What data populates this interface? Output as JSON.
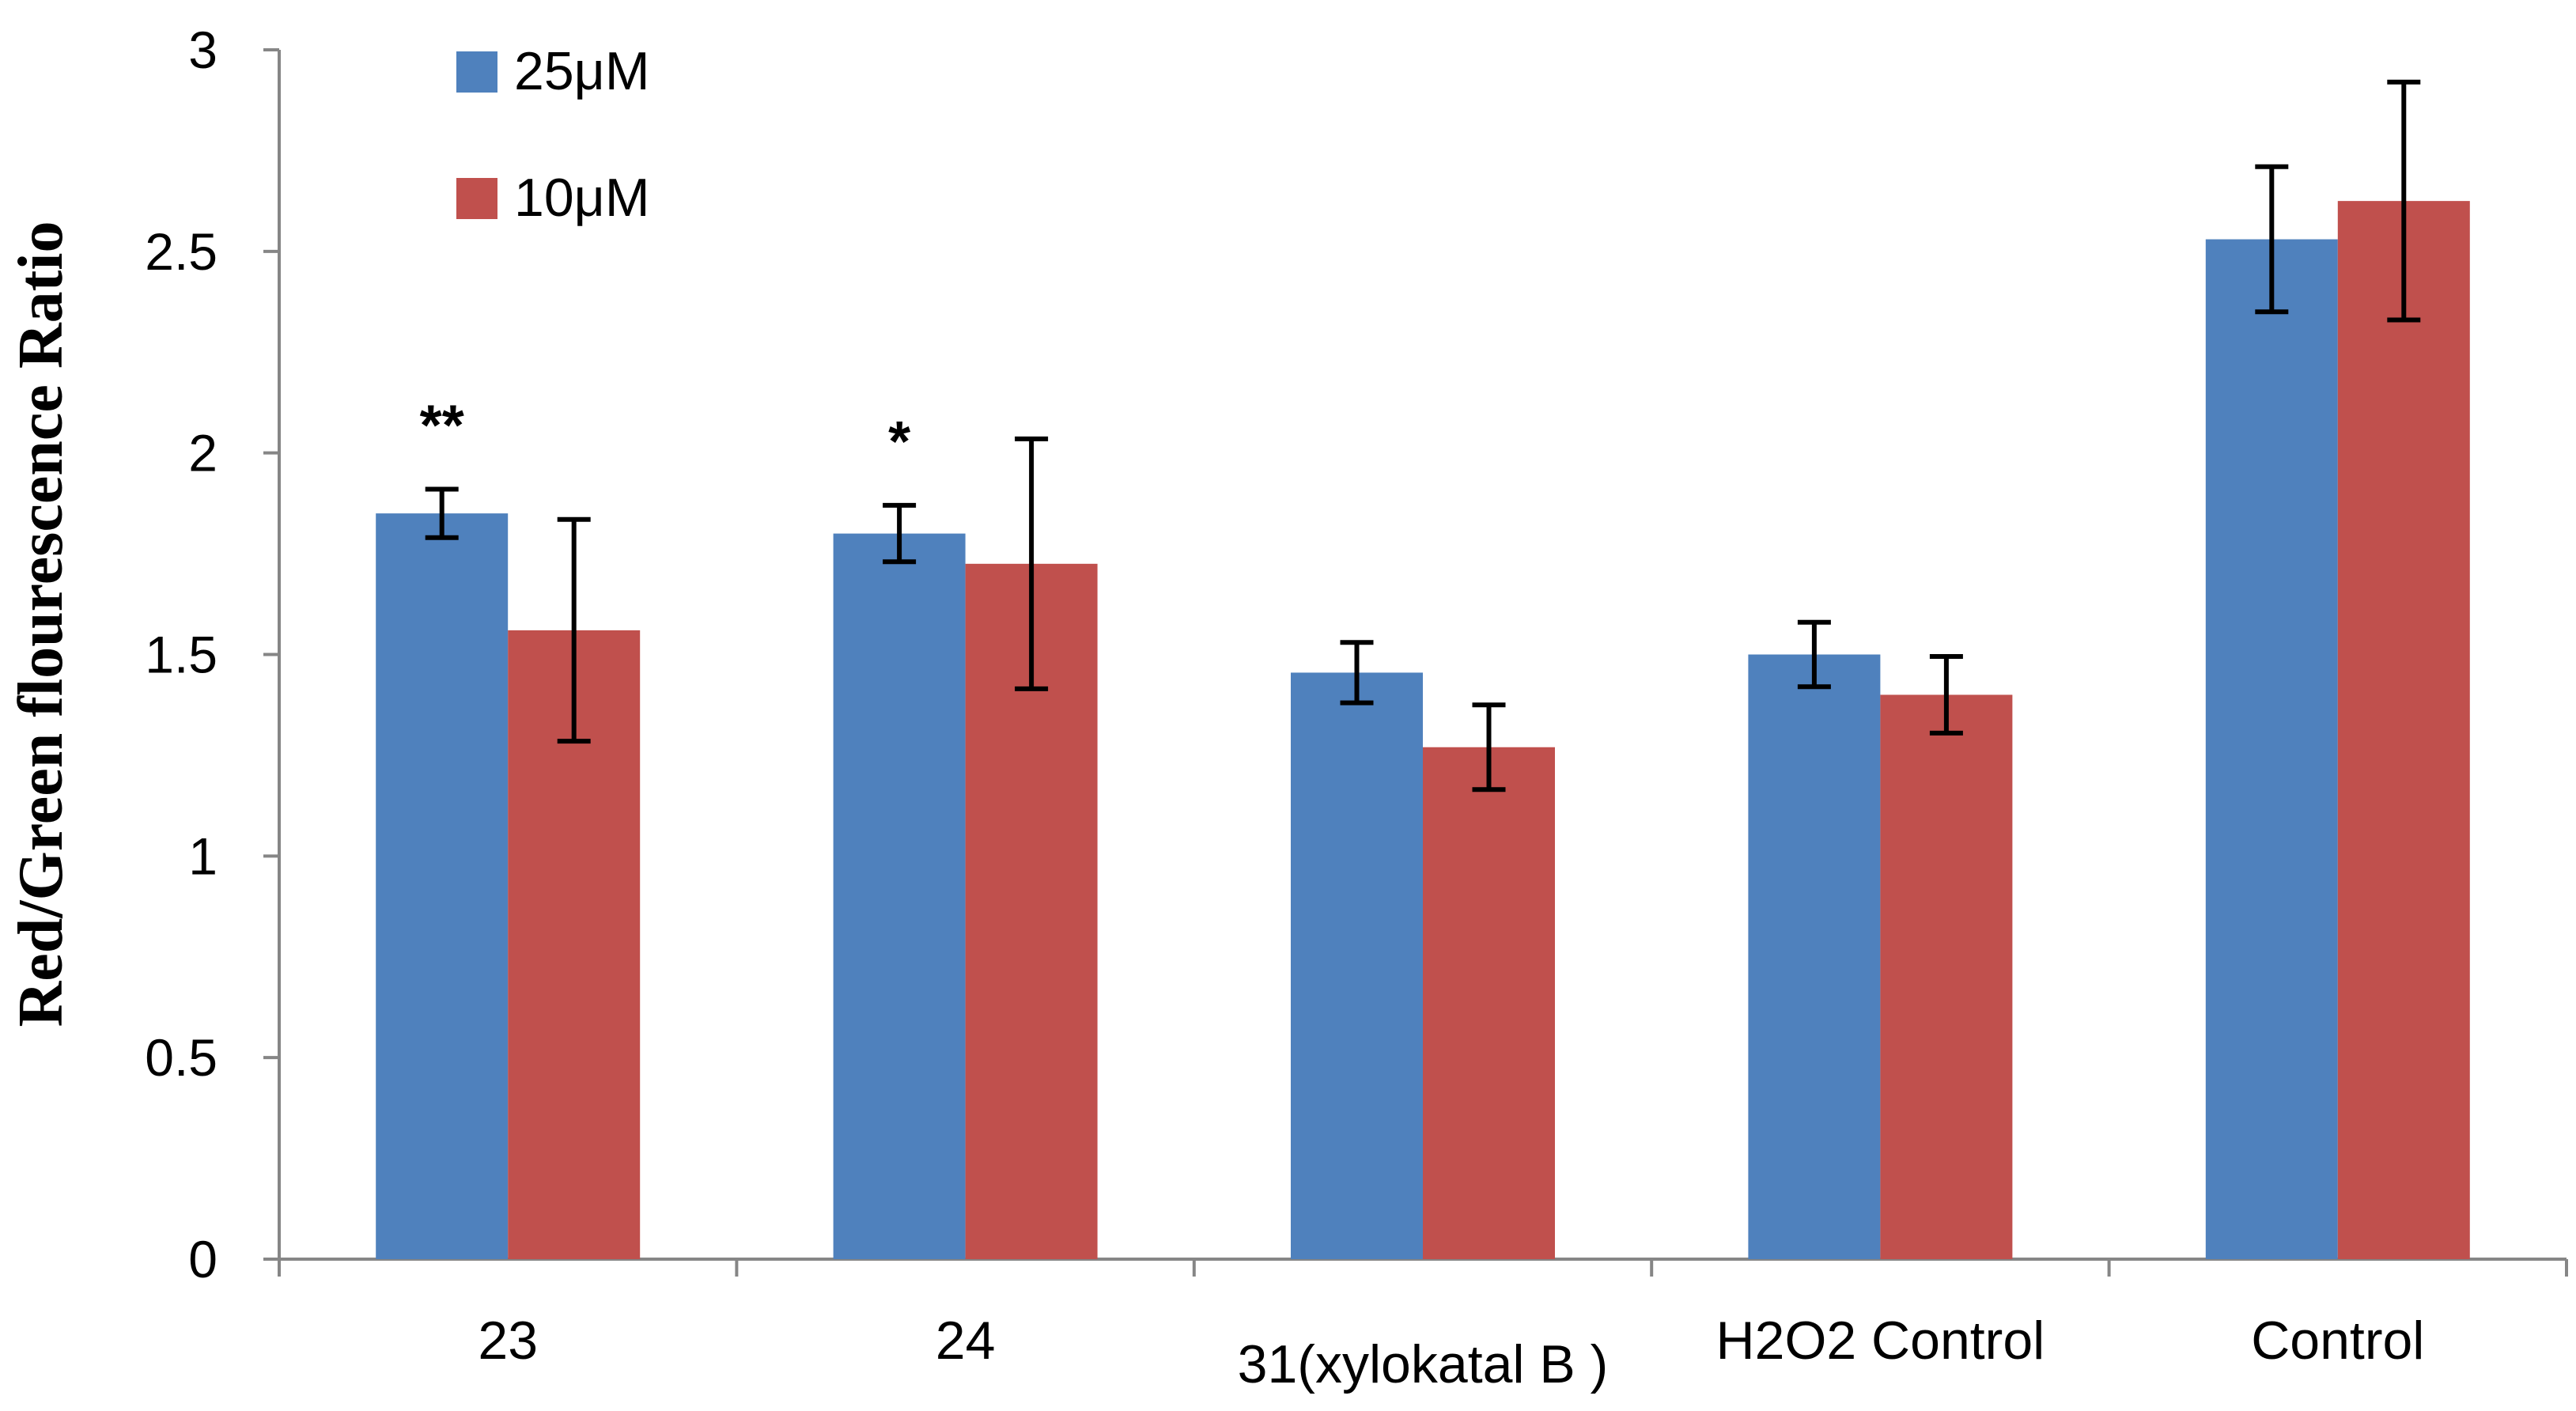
{
  "chart_data": {
    "type": "bar",
    "title": "",
    "xlabel": "",
    "ylabel": "Red/Green flourescence Ratio",
    "ylim": [
      0,
      3
    ],
    "yticks": [
      0,
      0.5,
      1,
      1.5,
      2,
      2.5,
      3
    ],
    "ytick_labels": [
      "0",
      "0.5",
      "1",
      "1.5",
      "2",
      "2.5",
      "3"
    ],
    "grid": false,
    "legend_position": "top-left",
    "categories": [
      "23",
      "24",
      "31(xylokatal B )",
      "H2O2 Control",
      "Control"
    ],
    "series": [
      {
        "name": "25μM",
        "color": "#4F81BD",
        "values": [
          1.85,
          1.8,
          1.455,
          1.5,
          2.53
        ],
        "errors": [
          0.06,
          0.07,
          0.075,
          0.08,
          0.18
        ]
      },
      {
        "name": "10μM",
        "color": "#C0504D",
        "values": [
          1.56,
          1.725,
          1.27,
          1.4,
          2.625
        ],
        "errors": [
          0.275,
          0.31,
          0.105,
          0.095,
          0.295
        ]
      }
    ],
    "annotations": [
      {
        "category": "23",
        "series": "25μM",
        "text": "**"
      },
      {
        "category": "24",
        "series": "25μM",
        "text": "*"
      }
    ]
  }
}
